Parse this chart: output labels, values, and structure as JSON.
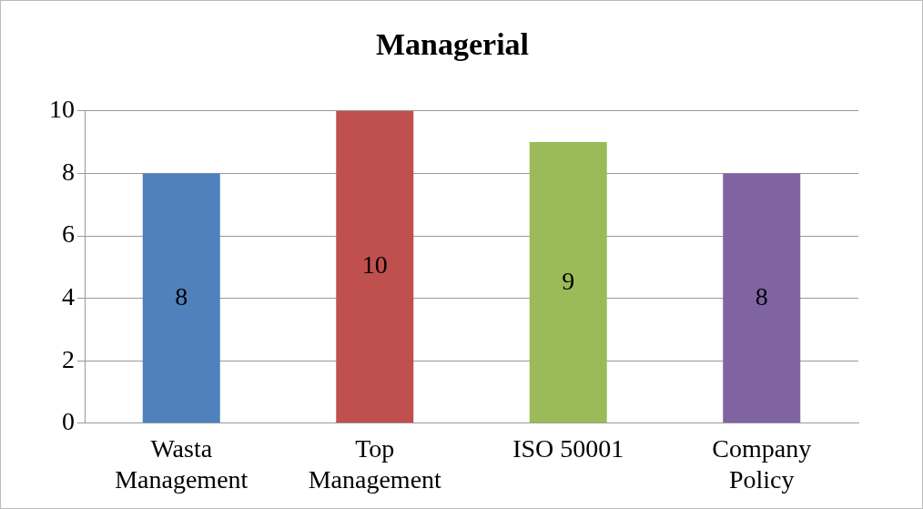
{
  "chart_data": {
    "type": "bar",
    "title": "Managerial",
    "categories": [
      "Wasta Management",
      "Top Management",
      "ISO 50001",
      "Company Policy"
    ],
    "values": [
      8,
      10,
      9,
      8
    ],
    "colors": [
      "#4f81bd",
      "#c0504d",
      "#9bbb59",
      "#8064a2"
    ],
    "ylim": [
      0,
      10
    ],
    "yticks": [
      0,
      2,
      4,
      6,
      8,
      10
    ],
    "grid": "y",
    "data_labels": true,
    "legend": false
  }
}
